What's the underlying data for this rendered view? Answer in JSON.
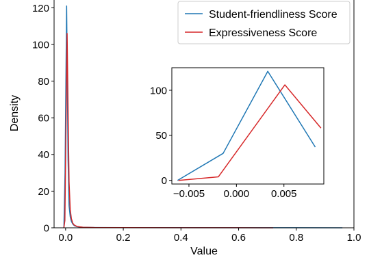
{
  "chart_data": [
    {
      "type": "line",
      "xlabel": "Value",
      "ylabel": "Density",
      "xlim": [
        -0.04,
        1.0
      ],
      "ylim": [
        0,
        125
      ],
      "xticks": [
        0.0,
        0.2,
        0.4,
        0.6,
        0.8,
        1.0
      ],
      "xtick_labels": [
        "0.0",
        "0.2",
        "0.4",
        "0.6",
        "0.8",
        "1.0"
      ],
      "yticks": [
        0,
        20,
        40,
        60,
        80,
        100,
        120
      ],
      "ytick_labels": [
        "0",
        "20",
        "40",
        "60",
        "80",
        "100",
        "120"
      ],
      "grid": false,
      "legend_position": "top-right",
      "series": [
        {
          "name": "Student-friendliness Score",
          "color": "#1f77b4",
          "x": [
            -0.006,
            -0.002,
            0.0035,
            0.0085,
            0.012,
            0.016,
            0.02,
            0.025,
            0.03,
            0.04,
            0.06,
            0.1,
            0.2,
            0.4,
            0.6,
            0.8,
            0.96
          ],
          "y": [
            0,
            30,
            121,
            37,
            12,
            6,
            3.5,
            2,
            1.2,
            0.6,
            0.3,
            0.15,
            0.1,
            0.08,
            0.06,
            0.04,
            0
          ]
        },
        {
          "name": "Expressiveness Score",
          "color": "#d62728",
          "x": [
            -0.006,
            -0.0025,
            0.0052,
            0.009,
            0.012,
            0.016,
            0.02,
            0.025,
            0.03,
            0.04,
            0.06,
            0.1,
            0.2,
            0.4,
            0.6,
            0.72
          ],
          "y": [
            0,
            4,
            106,
            58,
            25,
            10,
            5,
            2.5,
            1.5,
            0.7,
            0.3,
            0.12,
            0.08,
            0.05,
            0.03,
            0
          ]
        }
      ]
    },
    {
      "type": "line",
      "inset": true,
      "xlim": [
        -0.0068,
        0.0092
      ],
      "ylim": [
        -4,
        125
      ],
      "xticks": [
        -0.005,
        0.0,
        0.005
      ],
      "xtick_labels": [
        "−0.005",
        "0.000",
        "0.005"
      ],
      "yticks": [
        0,
        50,
        100
      ],
      "ytick_labels": [
        "0",
        "50",
        "100"
      ],
      "grid": false,
      "series": [
        {
          "color": "#1f77b4",
          "x": [
            -0.0062,
            -0.0014,
            0.0033,
            0.0083
          ],
          "y": [
            0,
            30,
            121,
            37
          ]
        },
        {
          "color": "#d62728",
          "x": [
            -0.0061,
            -0.0019,
            0.0051,
            0.0089
          ],
          "y": [
            0,
            4,
            106,
            58
          ]
        }
      ]
    }
  ]
}
